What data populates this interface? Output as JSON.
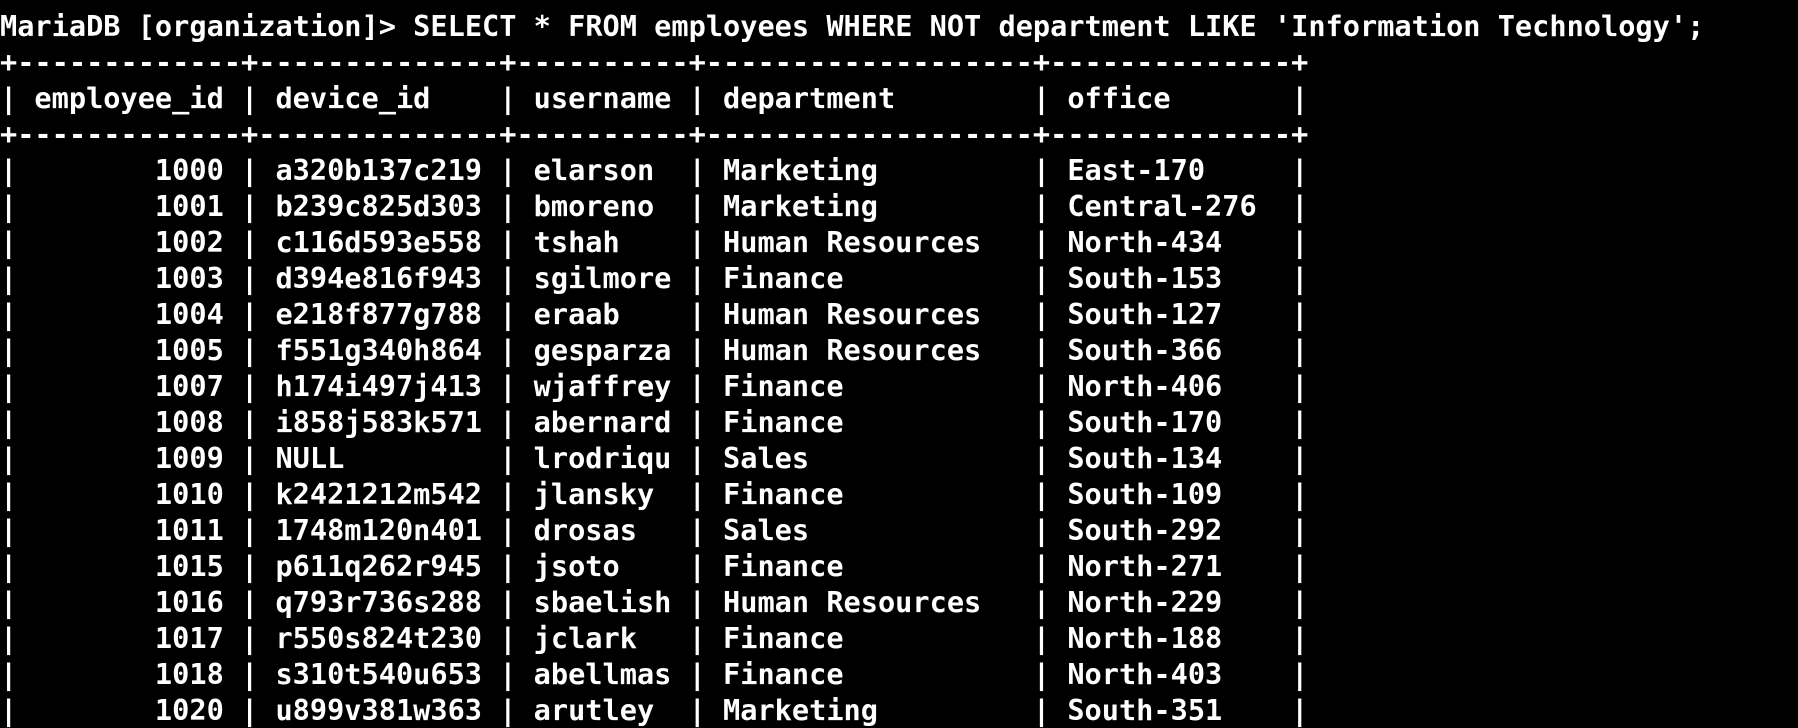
{
  "terminal": {
    "prompt": "MariaDB [organization]> ",
    "command": "SELECT * FROM employees WHERE NOT department LIKE 'Information Technology';"
  },
  "table": {
    "columns": [
      "employee_id",
      "device_id",
      "username",
      "department",
      "office"
    ],
    "widths": [
      13,
      14,
      10,
      19,
      14
    ],
    "align": [
      "right",
      "left",
      "left",
      "left",
      "left"
    ],
    "rows": [
      [
        "1000",
        "a320b137c219",
        "elarson",
        "Marketing",
        "East-170"
      ],
      [
        "1001",
        "b239c825d303",
        "bmoreno",
        "Marketing",
        "Central-276"
      ],
      [
        "1002",
        "c116d593e558",
        "tshah",
        "Human Resources",
        "North-434"
      ],
      [
        "1003",
        "d394e816f943",
        "sgilmore",
        "Finance",
        "South-153"
      ],
      [
        "1004",
        "e218f877g788",
        "eraab",
        "Human Resources",
        "South-127"
      ],
      [
        "1005",
        "f551g340h864",
        "gesparza",
        "Human Resources",
        "South-366"
      ],
      [
        "1007",
        "h174i497j413",
        "wjaffrey",
        "Finance",
        "North-406"
      ],
      [
        "1008",
        "i858j583k571",
        "abernard",
        "Finance",
        "South-170"
      ],
      [
        "1009",
        "NULL",
        "lrodriqu",
        "Sales",
        "South-134"
      ],
      [
        "1010",
        "k2421212m542",
        "jlansky",
        "Finance",
        "South-109"
      ],
      [
        "1011",
        "1748m120n401",
        "drosas",
        "Sales",
        "South-292"
      ],
      [
        "1015",
        "p611q262r945",
        "jsoto",
        "Finance",
        "North-271"
      ],
      [
        "1016",
        "q793r736s288",
        "sbaelish",
        "Human Resources",
        "North-229"
      ],
      [
        "1017",
        "r550s824t230",
        "jclark",
        "Finance",
        "North-188"
      ],
      [
        "1018",
        "s310t540u653",
        "abellmas",
        "Finance",
        "North-403"
      ],
      [
        "1020",
        "u899v381w363",
        "arutley",
        "Marketing",
        "South-351"
      ]
    ]
  }
}
